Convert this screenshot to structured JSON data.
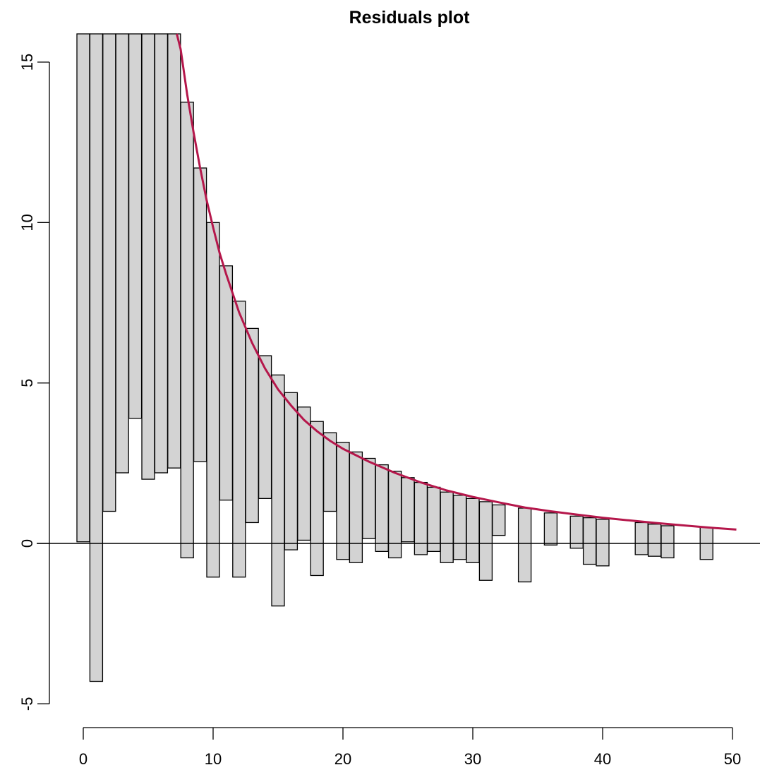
{
  "chart_data": {
    "type": "bar",
    "title": "Residuals plot",
    "xlabel": "",
    "ylabel": "",
    "xlim": [
      0,
      50
    ],
    "ylim": [
      -5,
      15
    ],
    "x_ticks": [
      0,
      10,
      20,
      30,
      40,
      50
    ],
    "y_ticks": [
      -5,
      0,
      5,
      10,
      15
    ],
    "bars": [
      {
        "x": 0,
        "low": 0.05,
        "high": 16
      },
      {
        "x": 1,
        "low": -4.3,
        "high": 16
      },
      {
        "x": 2,
        "low": 1.0,
        "high": 16
      },
      {
        "x": 3,
        "low": 2.2,
        "high": 16
      },
      {
        "x": 4,
        "low": 3.9,
        "high": 16
      },
      {
        "x": 5,
        "low": 2.0,
        "high": 16
      },
      {
        "x": 6,
        "low": 2.2,
        "high": 16
      },
      {
        "x": 7,
        "low": 2.35,
        "high": 16
      },
      {
        "x": 8,
        "low": -0.45,
        "high": 13.75
      },
      {
        "x": 9,
        "low": 2.55,
        "high": 11.7
      },
      {
        "x": 10,
        "low": -1.05,
        "high": 10.0
      },
      {
        "x": 11,
        "low": 1.35,
        "high": 8.65
      },
      {
        "x": 12,
        "low": -1.05,
        "high": 7.55
      },
      {
        "x": 13,
        "low": 0.65,
        "high": 6.7
      },
      {
        "x": 14,
        "low": 1.4,
        "high": 5.85
      },
      {
        "x": 15,
        "low": -1.95,
        "high": 5.25
      },
      {
        "x": 16,
        "low": -0.2,
        "high": 4.7
      },
      {
        "x": 17,
        "low": 0.1,
        "high": 4.25
      },
      {
        "x": 18,
        "low": -1.0,
        "high": 3.8
      },
      {
        "x": 19,
        "low": 1.0,
        "high": 3.45
      },
      {
        "x": 20,
        "low": -0.5,
        "high": 3.15
      },
      {
        "x": 21,
        "low": -0.6,
        "high": 2.85
      },
      {
        "x": 22,
        "low": 0.15,
        "high": 2.65
      },
      {
        "x": 23,
        "low": -0.25,
        "high": 2.45
      },
      {
        "x": 24,
        "low": -0.45,
        "high": 2.25
      },
      {
        "x": 25,
        "low": 0.05,
        "high": 2.05
      },
      {
        "x": 26,
        "low": -0.35,
        "high": 1.9
      },
      {
        "x": 27,
        "low": -0.25,
        "high": 1.75
      },
      {
        "x": 28,
        "low": -0.6,
        "high": 1.6
      },
      {
        "x": 29,
        "low": -0.5,
        "high": 1.5
      },
      {
        "x": 30,
        "low": -0.6,
        "high": 1.4
      },
      {
        "x": 31,
        "low": -1.15,
        "high": 1.3
      },
      {
        "x": 32,
        "low": 0.25,
        "high": 1.2
      },
      {
        "x": 34,
        "low": -1.2,
        "high": 1.1
      },
      {
        "x": 36,
        "low": -0.05,
        "high": 0.95
      },
      {
        "x": 38,
        "low": -0.15,
        "high": 0.85
      },
      {
        "x": 39,
        "low": -0.65,
        "high": 0.8
      },
      {
        "x": 40,
        "low": -0.7,
        "high": 0.75
      },
      {
        "x": 43,
        "low": -0.35,
        "high": 0.65
      },
      {
        "x": 44,
        "low": -0.4,
        "high": 0.6
      },
      {
        "x": 45,
        "low": -0.45,
        "high": 0.55
      },
      {
        "x": 48,
        "low": -0.5,
        "high": 0.5
      }
    ],
    "curve": {
      "x": [
        7.2,
        7.5,
        8,
        8.5,
        9,
        9.5,
        10,
        10.5,
        11,
        12,
        13,
        14,
        15,
        16,
        17,
        18,
        19,
        20,
        22,
        24,
        26,
        28,
        30,
        32,
        34,
        36,
        38,
        40,
        42,
        44,
        46,
        48,
        50.3
      ],
      "y": [
        16.0,
        15.4,
        14.0,
        12.8,
        11.7,
        10.7,
        9.85,
        9.05,
        8.4,
        7.2,
        6.25,
        5.45,
        4.8,
        4.3,
        3.85,
        3.5,
        3.2,
        2.95,
        2.55,
        2.2,
        1.9,
        1.65,
        1.45,
        1.28,
        1.12,
        1.0,
        0.9,
        0.8,
        0.72,
        0.64,
        0.57,
        0.5,
        0.43
      ]
    },
    "colors": {
      "bar_fill": "#d3d3d3",
      "bar_stroke": "#000000",
      "curve": "#b5174b"
    },
    "grid": false,
    "zero_line": true
  }
}
